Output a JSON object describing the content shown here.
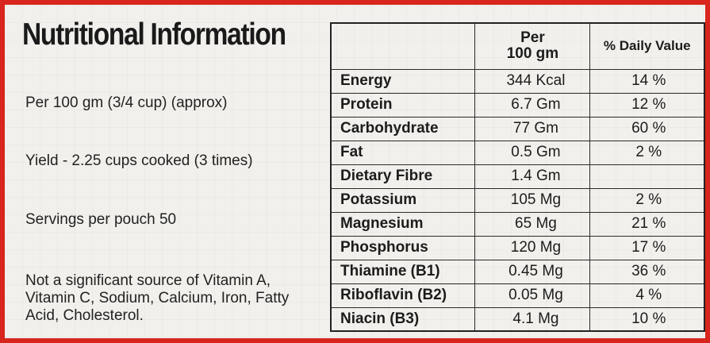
{
  "title": "Nutritional Information",
  "per_serving": "Per 100 gm (3/4 cup) (approx)",
  "yield": "Yield - 2.25 cups cooked (3 times)",
  "servings": "Servings per pouch 50",
  "note": "Not a significant source of Vitamin A, Vitamin C, Sodium, Calcium, Iron, Fatty Acid, Cholesterol.",
  "table": {
    "header_blank": "",
    "header_per": "Per\n100 gm",
    "header_dv": "% Daily Value",
    "rows": [
      {
        "name": "Energy",
        "amount": "344 Kcal",
        "dv": "14 %"
      },
      {
        "name": "Protein",
        "amount": "6.7 Gm",
        "dv": "12 %"
      },
      {
        "name": "Carbohydrate",
        "amount": "77 Gm",
        "dv": "60 %"
      },
      {
        "name": "Fat",
        "amount": "0.5 Gm",
        "dv": "2 %"
      },
      {
        "name": "Dietary Fibre",
        "amount": "1.4 Gm",
        "dv": ""
      },
      {
        "name": "Potassium",
        "amount": "105 Mg",
        "dv": "2 %"
      },
      {
        "name": "Magnesium",
        "amount": "65 Mg",
        "dv": "21 %"
      },
      {
        "name": "Phosphorus",
        "amount": "120 Mg",
        "dv": "17 %"
      },
      {
        "name": "Thiamine (B1)",
        "amount": "0.45 Mg",
        "dv": "36 %"
      },
      {
        "name": "Riboflavin (B2)",
        "amount": "0.05 Mg",
        "dv": "4 %"
      },
      {
        "name": "Niacin (B3)",
        "amount": "4.1 Mg",
        "dv": "10 %"
      }
    ]
  },
  "colors": {
    "border": "#d8261e",
    "paper": "#f1f0ec",
    "ink": "#1c1c1c"
  }
}
